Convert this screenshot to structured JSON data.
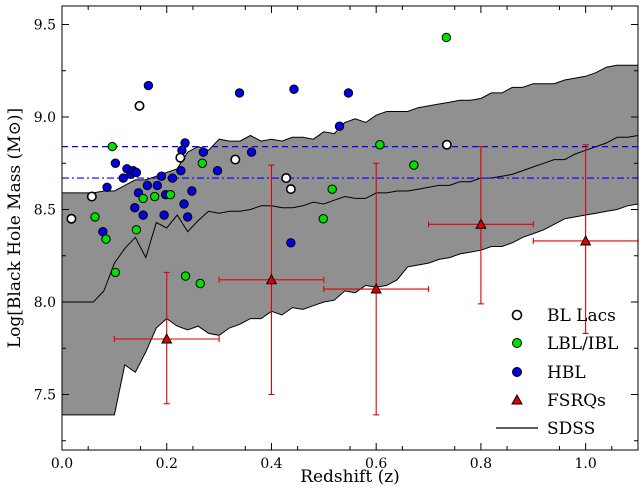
{
  "chart_data": {
    "type": "scatter",
    "title": "",
    "xlabel": "Redshift (z)",
    "ylabel": "Log[Black Hole Mass (M",
    "ylabel_symbol": "⊙",
    "ylabel_end": ")]",
    "xlim": [
      0.0,
      1.1
    ],
    "ylim": [
      7.2,
      9.6
    ],
    "xticks": [
      0.0,
      0.2,
      0.4,
      0.6,
      0.8,
      1.0
    ],
    "xtick_labels": [
      "0.0",
      "0.2",
      "0.4",
      "0.6",
      "0.8",
      "1.0"
    ],
    "yticks": [
      7.5,
      8.0,
      8.5,
      9.0,
      9.5
    ],
    "ytick_labels": [
      "7.5",
      "8.0",
      "8.5",
      "9.0",
      "9.5"
    ],
    "legend_position": "lower-right",
    "grid": false,
    "series": [
      {
        "name": "BL Lacs",
        "marker": "circle",
        "color": "#ffffff",
        "edge": "#000000",
        "points": [
          [
            0.018,
            8.45
          ],
          [
            0.057,
            8.57
          ],
          [
            0.148,
            9.06
          ],
          [
            0.226,
            8.78
          ],
          [
            0.331,
            8.77
          ],
          [
            0.428,
            8.67
          ],
          [
            0.437,
            8.61
          ],
          [
            0.735,
            8.85
          ]
        ]
      },
      {
        "name": "LBL/IBL",
        "marker": "circle",
        "color": "#00e000",
        "edge": "#000000",
        "points": [
          [
            0.063,
            8.46
          ],
          [
            0.084,
            8.34
          ],
          [
            0.096,
            8.84
          ],
          [
            0.102,
            8.16
          ],
          [
            0.142,
            8.39
          ],
          [
            0.155,
            8.56
          ],
          [
            0.177,
            8.57
          ],
          [
            0.207,
            8.58
          ],
          [
            0.236,
            8.14
          ],
          [
            0.264,
            8.1
          ],
          [
            0.268,
            8.75
          ],
          [
            0.499,
            8.45
          ],
          [
            0.516,
            8.61
          ],
          [
            0.607,
            8.85
          ],
          [
            0.672,
            8.74
          ],
          [
            0.734,
            9.43
          ]
        ]
      },
      {
        "name": "HBL",
        "marker": "circle",
        "color": "#0000e0",
        "edge": "#000000",
        "points": [
          [
            0.078,
            8.38
          ],
          [
            0.086,
            8.62
          ],
          [
            0.102,
            8.75
          ],
          [
            0.117,
            8.67
          ],
          [
            0.124,
            8.72
          ],
          [
            0.131,
            8.69
          ],
          [
            0.136,
            8.71
          ],
          [
            0.139,
            8.51
          ],
          [
            0.142,
            8.7
          ],
          [
            0.146,
            8.59
          ],
          [
            0.155,
            8.47
          ],
          [
            0.163,
            8.63
          ],
          [
            0.165,
            9.17
          ],
          [
            0.182,
            8.63
          ],
          [
            0.19,
            8.68
          ],
          [
            0.195,
            8.47
          ],
          [
            0.198,
            8.58
          ],
          [
            0.211,
            8.67
          ],
          [
            0.227,
            8.71
          ],
          [
            0.229,
            8.82
          ],
          [
            0.233,
            8.53
          ],
          [
            0.235,
            8.86
          ],
          [
            0.24,
            8.46
          ],
          [
            0.248,
            8.6
          ],
          [
            0.27,
            8.81
          ],
          [
            0.297,
            8.71
          ],
          [
            0.339,
            9.13
          ],
          [
            0.362,
            8.81
          ],
          [
            0.437,
            8.32
          ],
          [
            0.443,
            9.15
          ],
          [
            0.53,
            8.95
          ],
          [
            0.547,
            9.13
          ]
        ]
      },
      {
        "name": "FSRQs",
        "marker": "triangle",
        "color": "#e00000",
        "edge": "#000000",
        "points": [
          [
            0.2,
            7.8
          ],
          [
            0.4,
            8.12
          ],
          [
            0.6,
            8.07
          ],
          [
            0.8,
            8.42
          ],
          [
            1.0,
            8.33
          ]
        ],
        "xerr": [
          0.1,
          0.1,
          0.1,
          0.1,
          0.1
        ],
        "yerr_low": [
          0.35,
          0.62,
          0.68,
          0.43,
          0.5
        ],
        "yerr_high": [
          0.36,
          0.62,
          0.68,
          0.42,
          0.52
        ]
      }
    ],
    "sdss": {
      "name": "SDSS",
      "fill": "#909090",
      "x": [
        0.0,
        0.02,
        0.04,
        0.06,
        0.08,
        0.1,
        0.12,
        0.14,
        0.16,
        0.18,
        0.2,
        0.22,
        0.24,
        0.26,
        0.28,
        0.3,
        0.32,
        0.34,
        0.36,
        0.38,
        0.4,
        0.42,
        0.44,
        0.46,
        0.48,
        0.5,
        0.52,
        0.54,
        0.56,
        0.58,
        0.6,
        0.62,
        0.64,
        0.66,
        0.68,
        0.7,
        0.72,
        0.74,
        0.76,
        0.78,
        0.8,
        0.82,
        0.84,
        0.86,
        0.88,
        0.9,
        0.92,
        0.94,
        0.96,
        0.98,
        1.0,
        1.02,
        1.04,
        1.06,
        1.08,
        1.1
      ],
      "upper": [
        8.59,
        8.59,
        8.59,
        8.59,
        8.6,
        8.6,
        8.63,
        8.66,
        8.66,
        8.68,
        8.7,
        8.72,
        8.81,
        8.84,
        8.82,
        8.88,
        8.87,
        8.87,
        8.9,
        8.87,
        8.88,
        8.87,
        8.89,
        8.89,
        8.88,
        8.92,
        8.91,
        8.97,
        8.99,
        8.97,
        9.01,
        9.03,
        9.03,
        9.03,
        9.05,
        9.06,
        9.07,
        9.08,
        9.09,
        9.09,
        9.1,
        9.13,
        9.13,
        9.16,
        9.16,
        9.18,
        9.18,
        9.18,
        9.2,
        9.21,
        9.22,
        9.24,
        9.27,
        9.28,
        9.28,
        9.28
      ],
      "median": [
        8.0,
        8.0,
        8.0,
        8.0,
        8.06,
        8.21,
        8.29,
        8.35,
        8.24,
        8.43,
        8.4,
        8.47,
        8.38,
        8.44,
        8.49,
        8.48,
        8.49,
        8.49,
        8.5,
        8.52,
        8.52,
        8.51,
        8.51,
        8.52,
        8.54,
        8.53,
        8.55,
        8.57,
        8.56,
        8.56,
        8.59,
        8.59,
        8.6,
        8.6,
        8.61,
        8.62,
        8.63,
        8.63,
        8.65,
        8.65,
        8.67,
        8.67,
        8.68,
        8.69,
        8.71,
        8.73,
        8.75,
        8.77,
        8.77,
        8.8,
        8.82,
        8.84,
        8.86,
        8.89,
        8.89,
        8.9
      ],
      "lower": [
        7.39,
        7.39,
        7.39,
        7.39,
        7.39,
        7.39,
        7.66,
        7.62,
        7.73,
        7.86,
        7.91,
        7.87,
        7.85,
        7.87,
        7.83,
        7.82,
        7.86,
        7.88,
        7.91,
        7.91,
        7.95,
        7.93,
        7.97,
        7.96,
        7.98,
        8.0,
        8.01,
        8.06,
        8.05,
        8.09,
        8.08,
        8.09,
        8.12,
        8.19,
        8.2,
        8.21,
        8.23,
        8.24,
        8.26,
        8.27,
        8.28,
        8.3,
        8.3,
        8.32,
        8.35,
        8.37,
        8.39,
        8.42,
        8.45,
        8.46,
        8.47,
        8.48,
        8.49,
        8.5,
        8.52,
        8.53
      ]
    },
    "reference_lines": [
      {
        "y": 8.84,
        "style": "dashed",
        "color": "#0000ff"
      },
      {
        "y": 8.67,
        "style": "dashdot",
        "color": "#0000ff"
      }
    ]
  }
}
